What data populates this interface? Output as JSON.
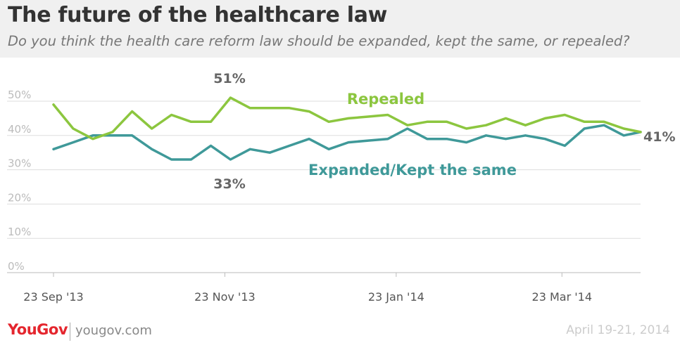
{
  "header": {
    "title": "The future of the healthcare law",
    "subtitle": "Do you think the health care reform law should be expanded, kept the same, or repealed?"
  },
  "chart_data": {
    "type": "line",
    "ylim": [
      0,
      55
    ],
    "yticks": [
      0,
      10,
      20,
      30,
      40,
      50
    ],
    "ytick_labels": [
      "0%",
      "10%",
      "20%",
      "30%",
      "40%",
      "50%"
    ],
    "xlim": [
      "2013-09-23",
      "2014-04-20"
    ],
    "xticks": [
      "2013-09-23",
      "2013-11-23",
      "2014-01-23",
      "2014-03-23"
    ],
    "xtick_labels": [
      "23 Sep '13",
      "23 Nov '13",
      "23 Jan '14",
      "23 Mar '14"
    ],
    "grid": true,
    "colors": {
      "repealed": "#8cc63f",
      "expanded": "#3f9999"
    },
    "series": [
      {
        "name": "Repealed",
        "key": "repealed",
        "x": [
          "2013-09-23",
          "2013-09-30",
          "2013-10-07",
          "2013-10-14",
          "2013-10-21",
          "2013-10-28",
          "2013-11-04",
          "2013-11-11",
          "2013-11-18",
          "2013-11-25",
          "2013-12-02",
          "2013-12-09",
          "2013-12-16",
          "2013-12-23",
          "2013-12-30",
          "2014-01-06",
          "2014-01-13",
          "2014-01-20",
          "2014-01-27",
          "2014-02-03",
          "2014-02-10",
          "2014-02-17",
          "2014-02-24",
          "2014-03-03",
          "2014-03-10",
          "2014-03-17",
          "2014-03-24",
          "2014-03-31",
          "2014-04-07",
          "2014-04-14",
          "2014-04-20"
        ],
        "values": [
          49,
          42,
          39,
          41,
          47,
          42,
          46,
          44,
          44,
          51,
          48,
          48,
          48,
          47,
          44,
          45,
          45.5,
          46,
          43,
          44,
          44,
          42,
          43,
          45,
          43,
          45,
          46,
          44,
          44,
          42,
          41
        ]
      },
      {
        "name": "Expanded/Kept the same",
        "key": "expanded",
        "x": [
          "2013-09-23",
          "2013-09-30",
          "2013-10-07",
          "2013-10-14",
          "2013-10-21",
          "2013-10-28",
          "2013-11-04",
          "2013-11-11",
          "2013-11-18",
          "2013-11-25",
          "2013-12-02",
          "2013-12-09",
          "2013-12-16",
          "2013-12-23",
          "2013-12-30",
          "2014-01-06",
          "2014-01-13",
          "2014-01-20",
          "2014-01-27",
          "2014-02-03",
          "2014-02-10",
          "2014-02-17",
          "2014-02-24",
          "2014-03-03",
          "2014-03-10",
          "2014-03-17",
          "2014-03-24",
          "2014-03-31",
          "2014-04-07",
          "2014-04-14",
          "2014-04-20"
        ],
        "values": [
          36,
          38,
          40,
          40,
          40,
          36,
          33,
          33,
          37,
          33,
          36,
          35,
          37,
          39,
          36,
          38,
          38.5,
          39,
          42,
          39,
          39,
          38,
          40,
          39,
          40,
          39,
          37,
          42,
          43,
          40,
          41
        ]
      }
    ],
    "annotations": [
      {
        "text": "51%",
        "series": "repealed",
        "x": "2013-11-25",
        "y": 51,
        "position": "above"
      },
      {
        "text": "33%",
        "series": "expanded",
        "x": "2013-11-25",
        "y": 33,
        "position": "below"
      },
      {
        "text": "41%",
        "series": "both",
        "x": "2014-04-20",
        "y": 41,
        "position": "right"
      }
    ]
  },
  "footer": {
    "logo": "YouGov",
    "site": "yougov.com",
    "date": "April 19-21, 2014"
  }
}
